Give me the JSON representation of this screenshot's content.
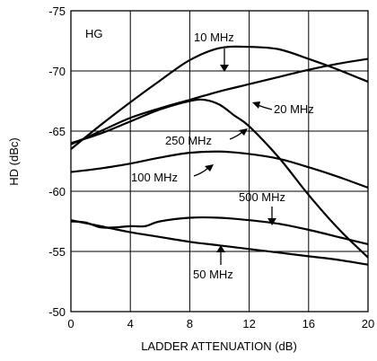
{
  "chart_data": {
    "type": "line",
    "xlabel": "LADDER ATTENUATION (dB)",
    "ylabel": "HD (dBc)",
    "xlim": [
      0,
      20
    ],
    "ylim": [
      -75,
      -50
    ],
    "y_axis_inverted": true,
    "x_ticks": [
      0,
      4,
      8,
      12,
      16,
      20
    ],
    "y_ticks": [
      -75,
      -70,
      -65,
      -60,
      -55,
      -50
    ],
    "x_tick_labels": [
      "0",
      "4",
      "8",
      "12",
      "16",
      "20"
    ],
    "y_tick_labels": [
      "-75",
      "-70",
      "-65",
      "-60",
      "-55",
      "-50"
    ],
    "grid": true,
    "annotation": "HG",
    "series": [
      {
        "name": "10 MHz",
        "x": [
          0,
          2,
          4,
          6,
          8,
          10,
          12,
          14,
          16,
          18,
          20
        ],
        "y": [
          -63.5,
          -65.5,
          -67.4,
          -69.2,
          -70.9,
          -71.9,
          -72.0,
          -71.8,
          -71.0,
          -70.1,
          -69.1
        ]
      },
      {
        "name": "20 MHz",
        "x": [
          0,
          2,
          4,
          6,
          8,
          10,
          12,
          14,
          16,
          18,
          20
        ],
        "y": [
          -63.9,
          -65.0,
          -66.1,
          -66.9,
          -67.6,
          -68.3,
          -68.9,
          -69.5,
          -70.1,
          -70.6,
          -71.0
        ]
      },
      {
        "name": "250 MHz",
        "x": [
          0,
          2,
          4,
          6,
          8,
          9,
          10,
          11,
          12,
          14,
          16,
          18,
          20
        ],
        "y": [
          -64.0,
          -64.8,
          -65.8,
          -66.8,
          -67.5,
          -67.6,
          -67.2,
          -66.3,
          -65.4,
          -62.8,
          -59.7,
          -56.9,
          -54.5
        ]
      },
      {
        "name": "100 MHz",
        "x": [
          0,
          2,
          4,
          6,
          8,
          10,
          12,
          14,
          16,
          18,
          20
        ],
        "y": [
          -61.6,
          -61.9,
          -62.3,
          -62.8,
          -63.2,
          -63.3,
          -63.1,
          -62.7,
          -62.0,
          -61.2,
          -60.3
        ]
      },
      {
        "name": "500 MHz",
        "x": [
          0,
          1,
          2,
          3,
          4,
          5,
          6,
          8,
          10,
          12,
          14,
          16,
          18,
          20
        ],
        "y": [
          -57.5,
          -57.4,
          -57.0,
          -57.0,
          -57.1,
          -57.1,
          -57.5,
          -57.8,
          -57.8,
          -57.6,
          -57.3,
          -56.8,
          -56.2,
          -55.6
        ]
      },
      {
        "name": "50 MHz",
        "x": [
          0,
          2,
          4,
          6,
          8,
          10,
          12,
          14,
          16,
          18,
          20
        ],
        "y": [
          -57.6,
          -57.1,
          -56.6,
          -56.2,
          -55.8,
          -55.5,
          -55.2,
          -54.9,
          -54.6,
          -54.3,
          -53.9
        ]
      }
    ]
  }
}
